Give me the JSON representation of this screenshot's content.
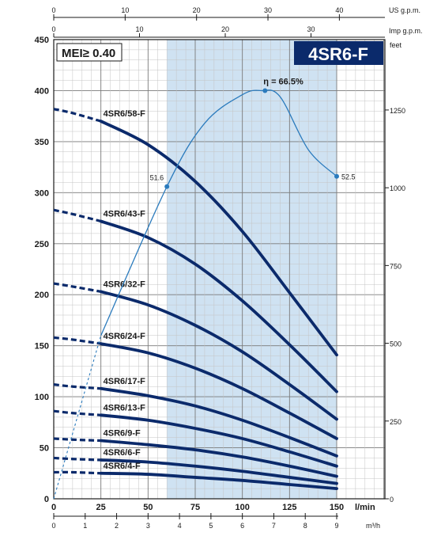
{
  "chart_data": {
    "type": "line",
    "title": "4SR6-F",
    "badge": "MEI≥ 0.40",
    "y_left": {
      "range": [
        0,
        450
      ],
      "ticks": [
        0,
        50,
        100,
        150,
        200,
        250,
        300,
        350,
        400,
        450
      ]
    },
    "y_right": {
      "label": "feet",
      "ticks": [
        0,
        250,
        500,
        750,
        1000,
        1250
      ]
    },
    "x_lpm": {
      "label": "l/min",
      "range": [
        0,
        150
      ],
      "ticks": [
        0,
        25,
        50,
        75,
        100,
        125,
        150
      ]
    },
    "x_m3h": {
      "label": "m³/h",
      "ticks": [
        0,
        1,
        2,
        3,
        4,
        5,
        6,
        7,
        8,
        9
      ]
    },
    "x_usgpm": {
      "label": "US g.p.m.",
      "ticks": [
        0,
        10,
        20,
        30,
        40
      ]
    },
    "x_impgpm": {
      "label": "Imp g.p.m.",
      "ticks": [
        0,
        10,
        20,
        30
      ]
    },
    "operating_range_lpm": [
      60,
      150
    ],
    "grid": true,
    "series": [
      {
        "name": "4SR6/58-F",
        "x": [
          0,
          10,
          25,
          50,
          75,
          100,
          125,
          150
        ],
        "y": [
          382,
          378,
          370,
          347,
          311,
          262,
          202,
          141
        ]
      },
      {
        "name": "4SR6/43-F",
        "x": [
          0,
          10,
          25,
          50,
          75,
          100,
          125,
          150
        ],
        "y": [
          283,
          279,
          272,
          256,
          230,
          194,
          151,
          105
        ]
      },
      {
        "name": "4SR6/32-F",
        "x": [
          0,
          10,
          25,
          50,
          75,
          100,
          125,
          150
        ],
        "y": [
          211,
          208,
          203,
          190,
          170,
          144,
          112,
          78
        ]
      },
      {
        "name": "4SR6/24-F",
        "x": [
          0,
          10,
          25,
          50,
          75,
          100,
          125,
          150
        ],
        "y": [
          158,
          156,
          152,
          143,
          128,
          108,
          84,
          59
        ]
      },
      {
        "name": "4SR6/17-F",
        "x": [
          0,
          10,
          25,
          50,
          75,
          100,
          125,
          150
        ],
        "y": [
          112,
          110,
          108,
          101,
          91,
          77,
          60,
          42
        ]
      },
      {
        "name": "4SR6/13-F",
        "x": [
          0,
          10,
          25,
          50,
          75,
          100,
          125,
          150
        ],
        "y": [
          86,
          84,
          82,
          77,
          69,
          59,
          46,
          32
        ]
      },
      {
        "name": "4SR6/9-F",
        "x": [
          0,
          10,
          25,
          50,
          75,
          100,
          125,
          150
        ],
        "y": [
          59,
          58,
          57,
          53,
          48,
          41,
          32,
          22
        ]
      },
      {
        "name": "4SR6/6-F",
        "x": [
          0,
          10,
          25,
          50,
          75,
          100,
          125,
          150
        ],
        "y": [
          40,
          39,
          38,
          36,
          32,
          27,
          21,
          15
        ]
      },
      {
        "name": "4SR6/4-F",
        "x": [
          0,
          10,
          25,
          50,
          75,
          100,
          125,
          150
        ],
        "y": [
          26,
          26,
          25,
          24,
          21,
          18,
          14,
          10
        ]
      }
    ],
    "efficiency": {
      "x": [
        0,
        25,
        60,
        80,
        100,
        110,
        120,
        135,
        150
      ],
      "y": [
        0,
        160,
        306,
        368,
        396,
        400,
        394,
        342,
        316
      ],
      "labels": [
        {
          "text": "51.6",
          "x": 60,
          "y": 306
        },
        {
          "text": "η = 66.5%",
          "x": 112,
          "y": 400
        },
        {
          "text": "52.5",
          "x": 150,
          "y": 316
        }
      ]
    },
    "colors": {
      "curve": "#0b2a6b",
      "efficiency": "#2b7bbd",
      "band": "#cfe2f2",
      "grid": "#9a9a9a",
      "title_bg": "#0b2a6b"
    }
  }
}
